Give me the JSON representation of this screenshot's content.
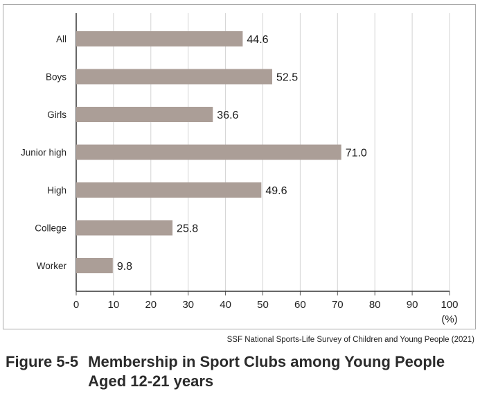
{
  "chart_data": {
    "type": "bar",
    "orientation": "horizontal",
    "categories": [
      "All",
      "Boys",
      "Girls",
      "Junior high",
      "High",
      "College",
      "Worker"
    ],
    "values": [
      44.6,
      52.5,
      36.6,
      71.0,
      49.6,
      25.8,
      9.8
    ],
    "value_labels": [
      "44.6",
      "52.5",
      "36.6",
      "71.0",
      "49.6",
      "25.8",
      "9.8"
    ],
    "x_ticks": [
      0,
      10,
      20,
      30,
      40,
      50,
      60,
      70,
      80,
      90,
      100
    ],
    "x_unit": "(%)",
    "xlim": [
      0,
      100
    ],
    "grid": "vertical",
    "bar_color": "#ab9e97",
    "grid_color": "#d3d3d3"
  },
  "source": "SSF National Sports-Life Survey of Children and Young People (2021)",
  "figure": {
    "number": "Figure 5-5",
    "title": "Membership in Sport Clubs among Young People Aged 12-21 years"
  }
}
